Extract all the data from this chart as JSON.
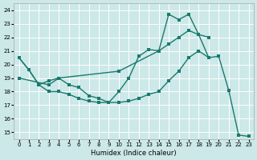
{
  "bg_color": "#cce8e8",
  "grid_color": "#ffffff",
  "line_color": "#1a7a6e",
  "xlabel": "Humidex (Indice chaleur)",
  "line1_x": [
    0,
    1,
    2,
    3,
    4,
    5,
    6,
    7,
    8,
    9,
    10,
    11,
    12,
    13,
    14,
    15,
    16,
    17,
    18,
    19
  ],
  "line1_y": [
    20.5,
    19.6,
    18.5,
    18.8,
    19.0,
    18.5,
    18.3,
    17.7,
    17.5,
    17.2,
    18.0,
    19.0,
    20.6,
    21.1,
    21.0,
    23.7,
    23.3,
    23.7,
    22.2,
    20.5
  ],
  "line2_x": [
    0,
    3,
    4,
    10,
    14,
    15,
    16,
    17,
    18,
    19
  ],
  "line2_y": [
    19.0,
    18.5,
    19.0,
    19.5,
    21.0,
    21.5,
    22.0,
    22.5,
    22.2,
    22.0
  ],
  "line3_x": [
    0,
    1,
    2,
    3,
    4,
    5,
    6,
    7,
    8,
    9,
    10,
    11,
    12,
    13,
    14,
    15,
    16,
    17,
    18,
    19,
    20,
    21,
    22,
    23
  ],
  "line3_y": [
    20.5,
    19.6,
    18.5,
    18.0,
    18.0,
    17.8,
    17.5,
    17.3,
    17.2,
    17.2,
    17.2,
    17.3,
    17.5,
    17.8,
    18.0,
    18.8,
    19.5,
    20.5,
    21.0,
    20.5,
    20.6,
    18.1,
    14.8,
    14.7
  ],
  "xlim": [
    -0.5,
    23.5
  ],
  "ylim": [
    14.5,
    24.5
  ],
  "xticks": [
    0,
    1,
    2,
    3,
    4,
    5,
    6,
    7,
    8,
    9,
    10,
    11,
    12,
    13,
    14,
    15,
    16,
    17,
    18,
    19,
    20,
    21,
    22,
    23
  ],
  "yticks": [
    15,
    16,
    17,
    18,
    19,
    20,
    21,
    22,
    23,
    24
  ],
  "tick_fontsize": 5,
  "xlabel_fontsize": 6,
  "marker_size": 2.5,
  "line_width": 1.0
}
